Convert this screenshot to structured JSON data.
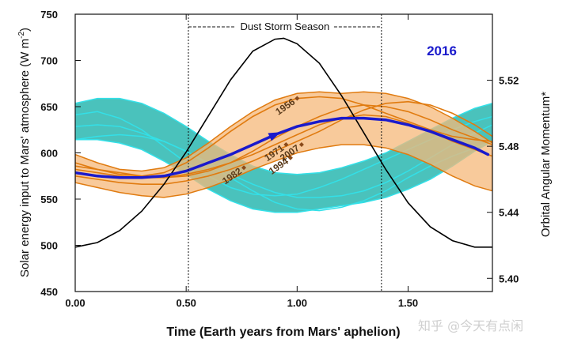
{
  "chart_data": {
    "type": "line",
    "xlabel": "Time (Earth years from Mars' aphelion)",
    "ylabel": "Solar energy input to Mars' atmosphere (W m^-2)",
    "ylabel_main": "Solar energy input to Mars' atmosphere  (W m",
    "ylabel_sup": "-2",
    "ylabel_end": ")",
    "y2label": "Orbital Angular Momentum*",
    "xlim": [
      0,
      1.88
    ],
    "ylim": [
      450,
      750
    ],
    "y2lim": [
      5.392,
      5.56
    ],
    "x_ticks": [
      "0.00",
      "0.50",
      "1.00",
      "1.50"
    ],
    "x_tick_values": [
      0,
      0.5,
      1.0,
      1.5
    ],
    "y_ticks": [
      "450",
      "500",
      "550",
      "600",
      "650",
      "700",
      "750"
    ],
    "y_tick_values": [
      450,
      500,
      550,
      600,
      650,
      700,
      750
    ],
    "y2_ticks": [
      "5.40",
      "5.44",
      "5.48",
      "5.52"
    ],
    "y2_tick_values": [
      5.4,
      5.44,
      5.48,
      5.52
    ],
    "dust_storm_season": {
      "label": "Dust Storm Season",
      "start": 0.51,
      "end": 1.38
    },
    "highlight_year": {
      "label": "2016",
      "color": "#1a1acc"
    },
    "colors": {
      "solar": "#000000",
      "cyan_band": "#2ab7b0",
      "cyan_line": "#33e0e8",
      "orange_band": "#f5b87a",
      "orange_line": "#e07b10",
      "highlight": "#1a1acc",
      "marker": "#8a4a1a"
    },
    "series": [
      {
        "name": "Solar energy input",
        "axis": "left",
        "x": [
          0.0,
          0.1,
          0.2,
          0.3,
          0.4,
          0.5,
          0.6,
          0.7,
          0.8,
          0.9,
          0.94,
          1.0,
          1.1,
          1.2,
          1.3,
          1.4,
          1.5,
          1.6,
          1.7,
          1.8,
          1.88
        ],
        "values": [
          498,
          503,
          516,
          537,
          566,
          601,
          640,
          679,
          710,
          723,
          724,
          718,
          697,
          662,
          622,
          582,
          546,
          520,
          505,
          498,
          498
        ]
      },
      {
        "name": "2016",
        "axis": "right",
        "x": [
          0.0,
          0.1,
          0.2,
          0.3,
          0.4,
          0.5,
          0.6,
          0.7,
          0.8,
          0.9,
          1.0,
          1.1,
          1.2,
          1.3,
          1.4,
          1.5,
          1.6,
          1.7,
          1.8,
          1.86
        ],
        "values": [
          5.464,
          5.462,
          5.461,
          5.461,
          5.462,
          5.465,
          5.47,
          5.475,
          5.481,
          5.487,
          5.492,
          5.495,
          5.497,
          5.497,
          5.496,
          5.493,
          5.489,
          5.484,
          5.479,
          5.475
        ]
      }
    ],
    "cyan_band": {
      "x": [
        0.0,
        0.1,
        0.2,
        0.3,
        0.4,
        0.5,
        0.6,
        0.7,
        0.8,
        0.9,
        1.0,
        1.1,
        1.2,
        1.3,
        1.4,
        1.5,
        1.6,
        1.7,
        1.8,
        1.88
      ],
      "upper": [
        5.506,
        5.509,
        5.509,
        5.506,
        5.5,
        5.492,
        5.483,
        5.475,
        5.468,
        5.464,
        5.463,
        5.464,
        5.467,
        5.471,
        5.476,
        5.483,
        5.49,
        5.497,
        5.503,
        5.506
      ],
      "lower": [
        5.484,
        5.484,
        5.482,
        5.478,
        5.471,
        5.463,
        5.454,
        5.447,
        5.442,
        5.44,
        5.44,
        5.442,
        5.444,
        5.446,
        5.449,
        5.454,
        5.46,
        5.468,
        5.477,
        5.483
      ],
      "lines": [
        [
          5.499,
          5.501,
          5.497,
          5.49,
          5.48,
          5.47,
          5.462,
          5.455,
          5.451,
          5.45,
          5.451,
          5.455,
          5.46,
          5.466,
          5.472,
          5.478,
          5.484,
          5.49,
          5.495,
          5.498
        ],
        [
          5.492,
          5.493,
          5.492,
          5.488,
          5.483,
          5.477,
          5.47,
          5.463,
          5.457,
          5.452,
          5.449,
          5.449,
          5.45,
          5.453,
          5.458,
          5.465,
          5.473,
          5.481,
          5.488,
          5.493
        ],
        [
          5.484,
          5.486,
          5.487,
          5.486,
          5.483,
          5.477,
          5.469,
          5.461,
          5.453,
          5.446,
          5.442,
          5.441,
          5.443,
          5.447,
          5.453,
          5.461,
          5.468,
          5.474,
          5.479,
          5.483
        ]
      ]
    },
    "orange_band": {
      "x": [
        0.0,
        0.1,
        0.2,
        0.3,
        0.4,
        0.5,
        0.6,
        0.7,
        0.8,
        0.9,
        1.0,
        1.1,
        1.2,
        1.3,
        1.4,
        1.5,
        1.6,
        1.7,
        1.8,
        1.88
      ],
      "upper": [
        5.475,
        5.47,
        5.466,
        5.465,
        5.467,
        5.473,
        5.482,
        5.492,
        5.501,
        5.508,
        5.512,
        5.513,
        5.512,
        5.513,
        5.512,
        5.509,
        5.504,
        5.497,
        5.489,
        5.482
      ],
      "lower": [
        5.458,
        5.455,
        5.452,
        5.45,
        5.449,
        5.451,
        5.455,
        5.46,
        5.466,
        5.471,
        5.476,
        5.479,
        5.481,
        5.481,
        5.479,
        5.475,
        5.469,
        5.462,
        5.456,
        5.453
      ],
      "lines": [
        [
          5.47,
          5.466,
          5.463,
          5.462,
          5.464,
          5.47,
          5.479,
          5.489,
          5.498,
          5.505,
          5.509,
          5.51,
          5.509,
          5.505,
          5.5,
          5.495,
          5.49,
          5.486,
          5.484,
          5.483
        ],
        [
          5.468,
          5.466,
          5.464,
          5.462,
          5.461,
          5.462,
          5.465,
          5.47,
          5.477,
          5.485,
          5.492,
          5.498,
          5.503,
          5.505,
          5.504,
          5.501,
          5.496,
          5.49,
          5.485,
          5.481
        ],
        [
          5.462,
          5.46,
          5.458,
          5.457,
          5.457,
          5.459,
          5.462,
          5.466,
          5.471,
          5.477,
          5.483,
          5.489,
          5.496,
          5.502,
          5.506,
          5.507,
          5.505,
          5.5,
          5.493,
          5.486
        ],
        [
          5.466,
          5.464,
          5.462,
          5.461,
          5.461,
          5.463,
          5.466,
          5.47,
          5.475,
          5.481,
          5.487,
          5.493,
          5.497,
          5.499,
          5.498,
          5.494,
          5.489,
          5.483,
          5.478,
          5.474
        ]
      ]
    },
    "year_markers": [
      {
        "label": "1956",
        "x": 1.0,
        "y": 5.509
      },
      {
        "label": "1971",
        "x": 0.95,
        "y": 5.481
      },
      {
        "label": "2007",
        "x": 1.02,
        "y": 5.481
      },
      {
        "label": "1982",
        "x": 0.76,
        "y": 5.467
      },
      {
        "label": "1994",
        "x": 0.97,
        "y": 5.473
      }
    ]
  },
  "watermark": "知乎 @今天有点闲"
}
